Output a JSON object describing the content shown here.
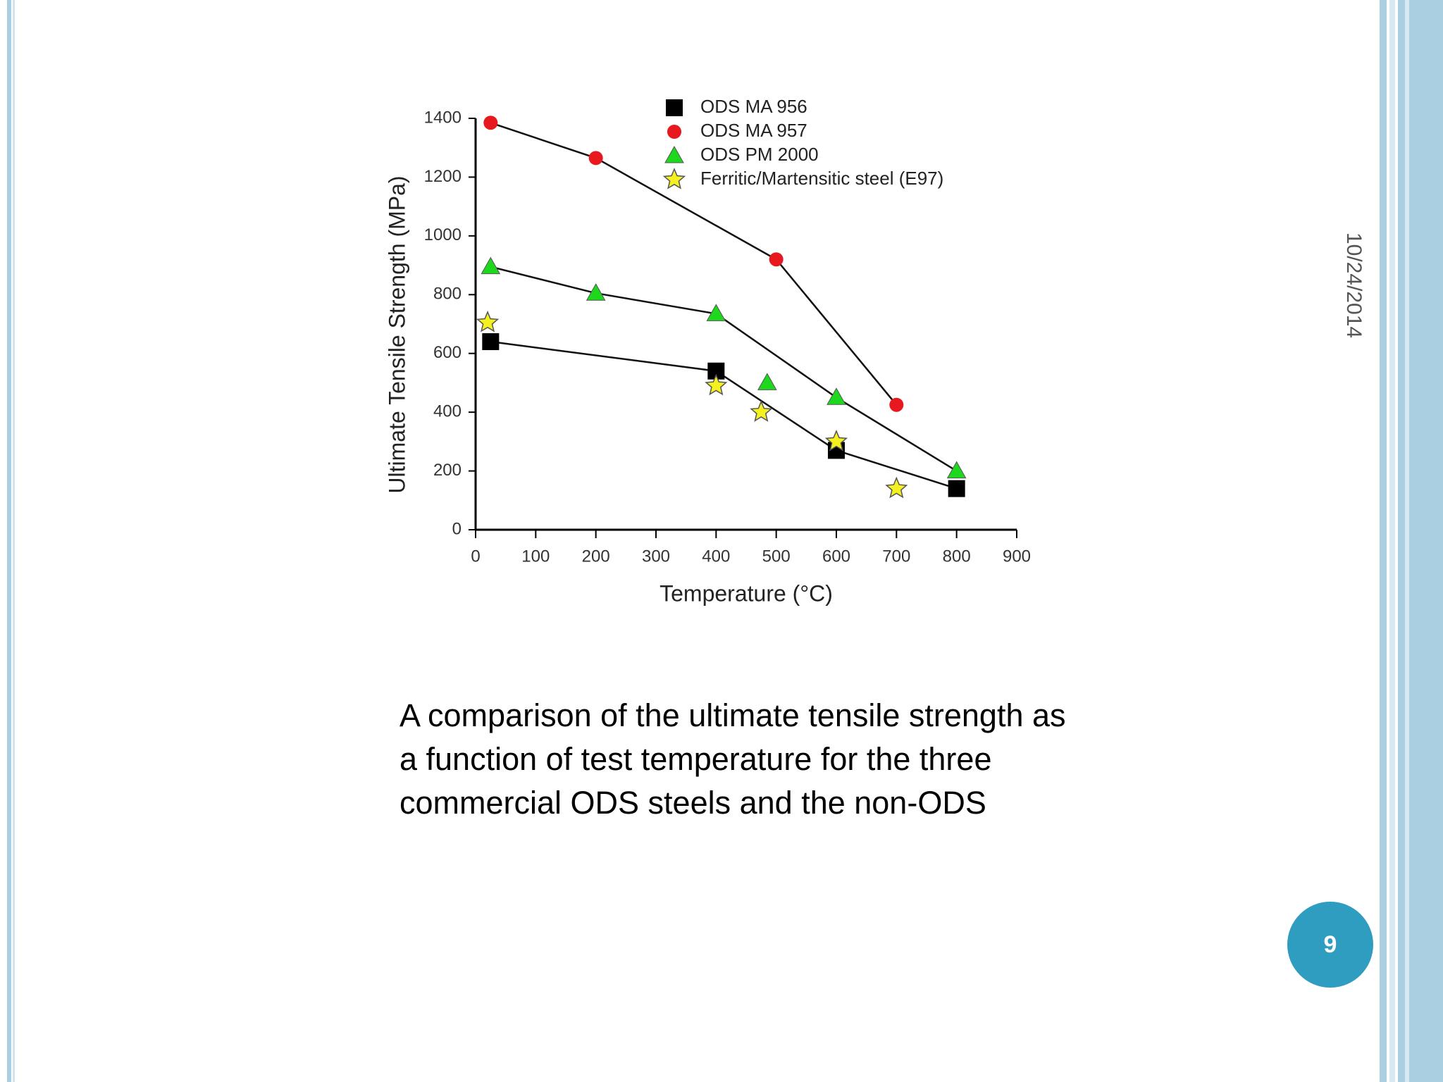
{
  "slide": {
    "date": "10/24/2014",
    "page_number": "9",
    "caption": "A comparison of the ultimate tensile strength as a function of test temperature for the three commercial ODS steels and the non-ODS"
  },
  "chart_data": {
    "type": "scatter",
    "xlabel": "Temperature (°C)",
    "ylabel": "Ultimate Tensile Strength (MPa)",
    "xlim": [
      0,
      900
    ],
    "xticks": [
      0,
      100,
      200,
      300,
      400,
      500,
      600,
      700,
      800,
      900
    ],
    "ylim": [
      0,
      1400
    ],
    "yticks": [
      0,
      200,
      400,
      600,
      800,
      1000,
      1200,
      1400
    ],
    "legend": "top-right",
    "series": [
      {
        "name": "ODS MA 956",
        "color": "#000000",
        "marker": "square",
        "line": true,
        "x": [
          25,
          400,
          600,
          800
        ],
        "values": [
          640,
          540,
          270,
          140
        ]
      },
      {
        "name": "ODS MA 957",
        "color": "#e8191e",
        "marker": "circle",
        "line": true,
        "x": [
          25,
          200,
          500,
          700
        ],
        "values": [
          1385,
          1265,
          920,
          425
        ]
      },
      {
        "name": "ODS PM 2000",
        "color": "#1ed81e",
        "marker": "triangle",
        "line": true,
        "x": [
          25,
          200,
          400,
          600,
          800
        ],
        "values": [
          895,
          805,
          735,
          450,
          200
        ]
      },
      {
        "name": "ODS PM 2000",
        "color": "#1ed81e",
        "marker": "triangle",
        "line": false,
        "x": [
          485
        ],
        "values": [
          500
        ]
      },
      {
        "name": "Ferritic/Martensitic steel (E97)",
        "color": "#f5f020",
        "marker": "star",
        "line": false,
        "x": [
          20,
          400,
          475,
          600,
          700
        ],
        "values": [
          705,
          490,
          400,
          300,
          140
        ]
      }
    ]
  }
}
